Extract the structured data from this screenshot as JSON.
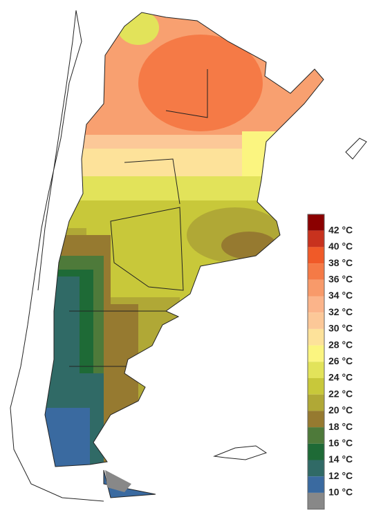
{
  "legend": {
    "labels": [
      "42 °C",
      "40 °C",
      "38 °C",
      "36 °C",
      "34 °C",
      "32 °C",
      "30 °C",
      "28 °C",
      "26 °C",
      "24 °C",
      "22 °C",
      "20 °C",
      "18 °C",
      "16 °C",
      "14 °C",
      "12 °C",
      "10 °C"
    ],
    "colors": [
      "#8b0000",
      "#c8321e",
      "#f05a28",
      "#f57a46",
      "#f89a6a",
      "#fbb48a",
      "#fcc898",
      "#fde29a",
      "#fbf580",
      "#e2e35a",
      "#c8c83a",
      "#b0a836",
      "#967a30",
      "#4e7a3a",
      "#1e6a36",
      "#306a66",
      "#3a6aa0",
      "#888888"
    ]
  }
}
